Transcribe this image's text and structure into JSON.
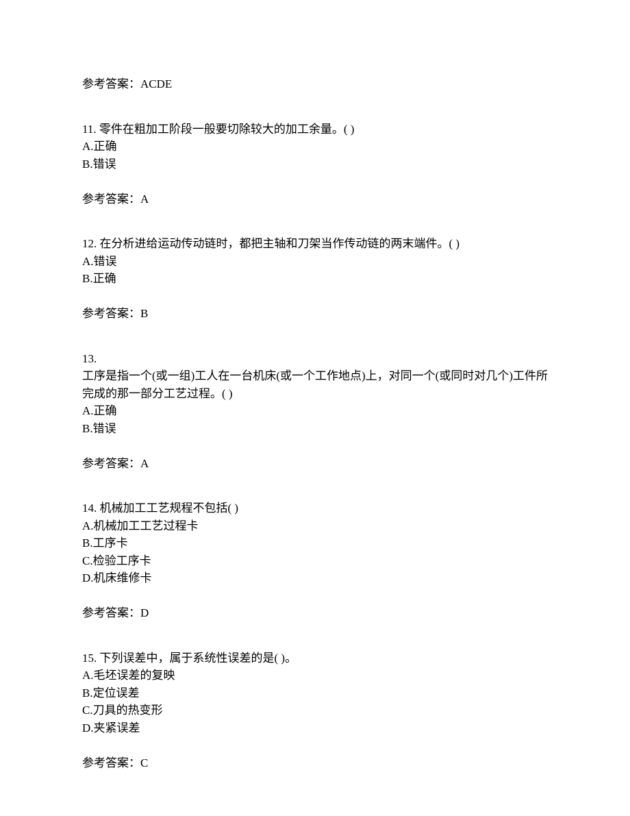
{
  "prev_answer": {
    "label": "参考答案：",
    "value": "ACDE"
  },
  "q11": {
    "number": "11.",
    "text": "零件在粗加工阶段一般要切除较大的加工余量。(  )",
    "options": {
      "a": "A.正确",
      "b": "B.错误"
    },
    "answer_label": "参考答案：",
    "answer_value": "A"
  },
  "q12": {
    "number": "12.",
    "text": "在分析进给运动传动链时，都把主轴和刀架当作传动链的两末端件。(  )",
    "options": {
      "a": "A.错误",
      "b": "B.正确"
    },
    "answer_label": "参考答案：",
    "answer_value": "B"
  },
  "q13": {
    "number": "13.",
    "text": "工序是指一个(或一组)工人在一台机床(或一个工作地点)上，对同一个(或同时对几个)工件所完成的那一部分工艺过程。(  )",
    "options": {
      "a": "A.正确",
      "b": "B.错误"
    },
    "answer_label": "参考答案：",
    "answer_value": "A"
  },
  "q14": {
    "number": "14.",
    "text": "机械加工工艺规程不包括(  )",
    "options": {
      "a": "A.机械加工工艺过程卡",
      "b": "B.工序卡",
      "c": "C.检验工序卡",
      "d": "D.机床维修卡"
    },
    "answer_label": "参考答案：",
    "answer_value": "D"
  },
  "q15": {
    "number": "15.",
    "text": "下列误差中，属于系统性误差的是(  )。",
    "options": {
      "a": "A.毛坯误差的复映",
      "b": "B.定位误差",
      "c": "C.刀具的热变形",
      "d": "D.夹紧误差"
    },
    "answer_label": "参考答案：",
    "answer_value": "C"
  }
}
